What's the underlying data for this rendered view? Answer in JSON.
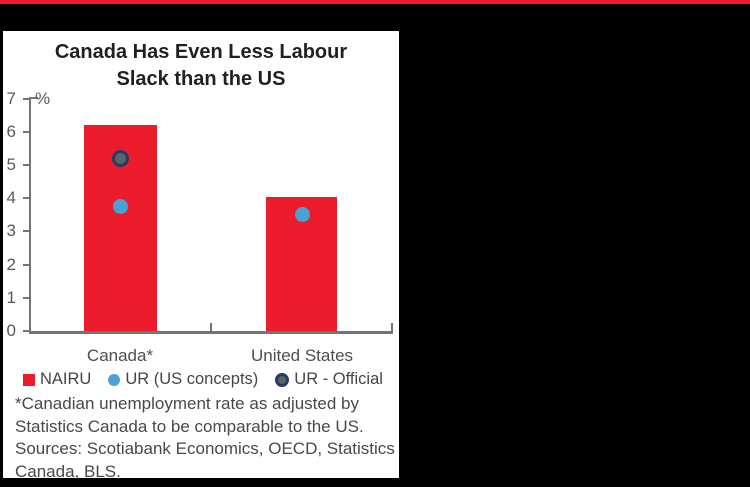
{
  "page": {
    "background": "#000000",
    "top_rule_color": "#ec1c2d",
    "panel_background": "#ffffff"
  },
  "chart_data": {
    "type": "bar",
    "title": "Canada Has Even Less Labour Slack than the US",
    "title_lines": [
      "Canada Has Even Less Labour",
      "Slack than the US"
    ],
    "y_unit": "%",
    "ylim": [
      0,
      7
    ],
    "y_ticks": [
      0,
      1,
      2,
      3,
      4,
      5,
      6,
      7
    ],
    "grid": false,
    "legend_position": "bottom",
    "categories": [
      "Canada*",
      "United States"
    ],
    "series": [
      {
        "name": "NAIRU",
        "type": "bar",
        "color": "#ec1c2d",
        "values": [
          6.2,
          4.05
        ]
      },
      {
        "name": "UR (US concepts)",
        "type": "point",
        "color": "#4ba1d6",
        "values": [
          3.75,
          3.5
        ]
      },
      {
        "name": "UR - Official",
        "type": "point",
        "color": "#5c6269",
        "border_color": "#223d66",
        "values": [
          5.2,
          null
        ]
      }
    ]
  },
  "footnote": {
    "lines": [
      "*Canadian unemployment rate as adjusted by",
      "Statistics Canada to be comparable to the US.",
      "Sources: Scotiabank Economics, OECD, Statistics",
      "Canada, BLS."
    ]
  }
}
